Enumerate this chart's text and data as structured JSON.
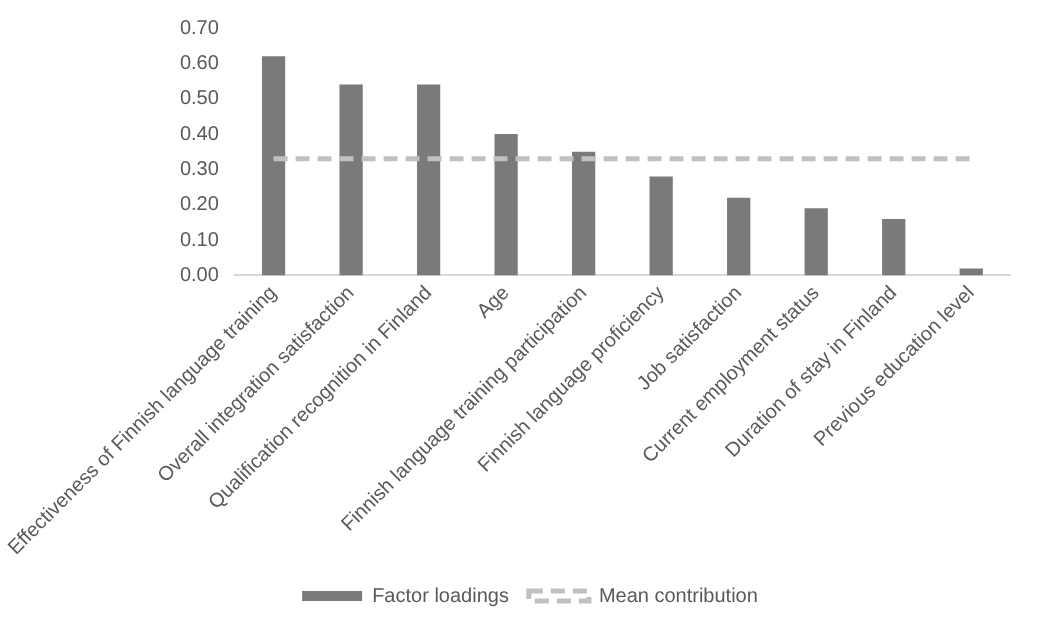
{
  "chart_data": {
    "type": "bar",
    "categories": [
      "Effectiveness of Finnish language training",
      "Overall integration satisfaction",
      "Qualification recognition in Finland",
      "Age",
      "Finnish language training participation",
      "Finnish language proficiency",
      "Job satisfaction",
      "Current employment status",
      "Duration of stay in Finland",
      "Previous education level"
    ],
    "series": [
      {
        "name": "Factor loadings",
        "color": "#7a7a7a",
        "values": [
          0.62,
          0.54,
          0.54,
          0.4,
          0.35,
          0.28,
          0.22,
          0.19,
          0.16,
          0.02
        ]
      },
      {
        "name": "Mean contribution",
        "type": "line",
        "line_style": "dashed",
        "color": "#c0c0c0",
        "values": [
          0.33,
          0.33,
          0.33,
          0.33,
          0.33,
          0.33,
          0.33,
          0.33,
          0.33,
          0.33
        ]
      }
    ],
    "ylim": [
      0,
      0.7
    ],
    "yticks": [
      {
        "value": 0,
        "label": "0.00"
      },
      {
        "value": 0.1,
        "label": "0.10"
      },
      {
        "value": 0.2,
        "label": "0.20"
      },
      {
        "value": 0.3,
        "label": "0.30"
      },
      {
        "value": 0.4,
        "label": "0.40"
      },
      {
        "value": 0.5,
        "label": "0.50"
      },
      {
        "value": 0.6,
        "label": "0.60"
      },
      {
        "value": 0.7,
        "label": "0.70"
      }
    ],
    "grid": false,
    "legend": "bottom",
    "marker": "none"
  }
}
